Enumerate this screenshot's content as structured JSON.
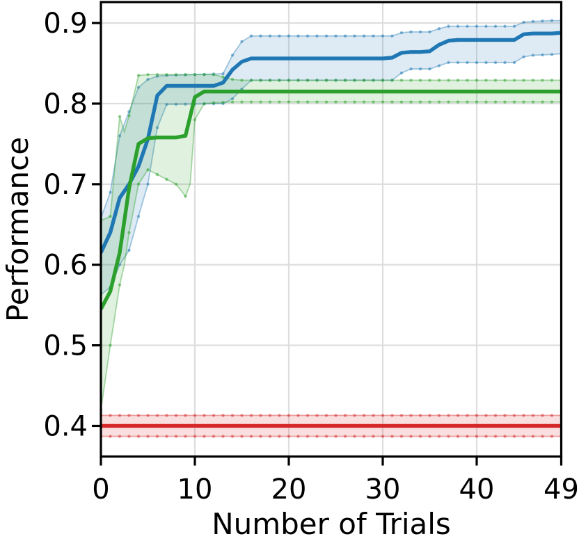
{
  "chart_data": {
    "type": "line",
    "title": "",
    "xlabel": "Number of Trials",
    "ylabel": "Performance",
    "xlim": [
      0,
      49
    ],
    "ylim": [
      0.362,
      0.926
    ],
    "xticks": {
      "values": [
        0,
        10,
        20,
        30,
        40,
        49
      ],
      "labels": [
        "0",
        "10",
        "20",
        "30",
        "40",
        "49"
      ]
    },
    "yticks": {
      "values": [
        0.4,
        0.5,
        0.6,
        0.7,
        0.8,
        0.9
      ],
      "labels": [
        "0.4",
        "0.5",
        "0.6",
        "0.7",
        "0.8",
        "0.9"
      ]
    },
    "grid": true,
    "legend": "none",
    "x": [
      0,
      1,
      2,
      3,
      4,
      5,
      6,
      7,
      8,
      9,
      10,
      11,
      12,
      13,
      14,
      15,
      16,
      17,
      18,
      19,
      20,
      21,
      22,
      23,
      24,
      25,
      26,
      27,
      28,
      29,
      30,
      31,
      32,
      33,
      34,
      35,
      36,
      37,
      38,
      39,
      40,
      41,
      42,
      43,
      44,
      45,
      46,
      47,
      48,
      49
    ],
    "series": [
      {
        "name": "blue-curve",
        "color": "#1f77b4",
        "values": [
          0.615,
          0.64,
          0.683,
          0.7,
          0.722,
          0.756,
          0.81,
          0.822,
          0.822,
          0.822,
          0.822,
          0.822,
          0.822,
          0.826,
          0.842,
          0.852,
          0.856,
          0.856,
          0.856,
          0.856,
          0.856,
          0.856,
          0.856,
          0.856,
          0.856,
          0.856,
          0.856,
          0.856,
          0.856,
          0.856,
          0.856,
          0.857,
          0.863,
          0.864,
          0.864,
          0.865,
          0.873,
          0.878,
          0.879,
          0.879,
          0.879,
          0.879,
          0.879,
          0.879,
          0.879,
          0.886,
          0.887,
          0.887,
          0.887,
          0.888
        ],
        "band": {
          "x": [
            0,
            1,
            2,
            3,
            4,
            5,
            6,
            7,
            13,
            14,
            15,
            16,
            31,
            32,
            33,
            35,
            36,
            37,
            44,
            45,
            46,
            48,
            49
          ],
          "lo": [
            0.563,
            0.572,
            0.6,
            0.618,
            0.66,
            0.7,
            0.77,
            0.799,
            0.8,
            0.806,
            0.818,
            0.829,
            0.829,
            0.838,
            0.843,
            0.843,
            0.847,
            0.851,
            0.851,
            0.858,
            0.86,
            0.861,
            0.862
          ],
          "hi": [
            0.658,
            0.69,
            0.76,
            0.79,
            0.82,
            0.83,
            0.834,
            0.835,
            0.837,
            0.86,
            0.877,
            0.884,
            0.884,
            0.888,
            0.889,
            0.889,
            0.893,
            0.896,
            0.896,
            0.901,
            0.902,
            0.903,
            0.903
          ]
        }
      },
      {
        "name": "green-curve",
        "color": "#2ca02c",
        "values": [
          0.545,
          0.567,
          0.615,
          0.695,
          0.75,
          0.757,
          0.758,
          0.758,
          0.758,
          0.76,
          0.808,
          0.815,
          0.815,
          0.815,
          0.815,
          0.815,
          0.815,
          0.815,
          0.815,
          0.815,
          0.815,
          0.815,
          0.815,
          0.815,
          0.815,
          0.815,
          0.815,
          0.815,
          0.815,
          0.815,
          0.815,
          0.815,
          0.815,
          0.815,
          0.815,
          0.815,
          0.815,
          0.815,
          0.815,
          0.815,
          0.815,
          0.815,
          0.815,
          0.815,
          0.815,
          0.815,
          0.815,
          0.815,
          0.815,
          0.815
        ],
        "band": {
          "x": [
            0,
            1,
            2,
            2.5,
            3,
            4,
            5,
            8,
            9,
            9.5,
            10,
            11,
            12,
            14,
            15,
            49
          ],
          "lo": [
            0.42,
            0.5,
            0.575,
            0.6,
            0.64,
            0.7,
            0.718,
            0.7,
            0.685,
            0.7,
            0.78,
            0.8,
            0.801,
            0.802,
            0.802,
            0.802
          ],
          "hi": [
            0.655,
            0.66,
            0.784,
            0.765,
            0.785,
            0.835,
            0.836,
            0.836,
            0.836,
            0.836,
            0.836,
            0.836,
            0.836,
            0.83,
            0.829,
            0.829
          ]
        }
      },
      {
        "name": "red-baseline",
        "color": "#d62728",
        "values": [
          0.4,
          0.4,
          0.4,
          0.4,
          0.4,
          0.4,
          0.4,
          0.4,
          0.4,
          0.4,
          0.4,
          0.4,
          0.4,
          0.4,
          0.4,
          0.4,
          0.4,
          0.4,
          0.4,
          0.4,
          0.4,
          0.4,
          0.4,
          0.4,
          0.4,
          0.4,
          0.4,
          0.4,
          0.4,
          0.4,
          0.4,
          0.4,
          0.4,
          0.4,
          0.4,
          0.4,
          0.4,
          0.4,
          0.4,
          0.4,
          0.4,
          0.4,
          0.4,
          0.4,
          0.4,
          0.4,
          0.4,
          0.4,
          0.4,
          0.4
        ],
        "band": {
          "x": [
            0,
            49
          ],
          "lo": [
            0.387,
            0.387
          ],
          "hi": [
            0.413,
            0.413
          ]
        }
      }
    ],
    "styles": {
      "grid_color": "#dedede",
      "axis_color": "#000000",
      "band_alpha": 0.15,
      "band_edge_alpha": 0.4,
      "band_dot_alpha": 0.5,
      "line_width": 5.4
    }
  }
}
